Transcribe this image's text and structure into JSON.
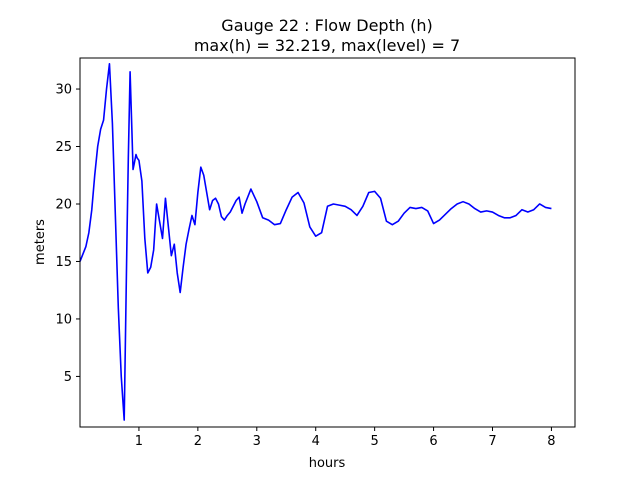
{
  "chart_data": {
    "type": "line",
    "title_line1": "Gauge 22 : Flow Depth (h)",
    "title_line2": "max(h) =  32.219,    max(level) = 7",
    "xlabel": "hours",
    "ylabel": "meters",
    "xlim": [
      0.0,
      8.4
    ],
    "ylim": [
      0.6,
      32.7
    ],
    "xticks": [
      1,
      2,
      3,
      4,
      5,
      6,
      7,
      8
    ],
    "yticks": [
      5,
      10,
      15,
      20,
      25,
      30
    ],
    "grid": false,
    "series": [
      {
        "color": "#0000ff",
        "x": [
          0.0,
          0.1,
          0.15,
          0.2,
          0.25,
          0.3,
          0.35,
          0.4,
          0.45,
          0.5,
          0.55,
          0.6,
          0.65,
          0.7,
          0.75,
          0.8,
          0.82,
          0.85,
          0.88,
          0.9,
          0.92,
          0.95,
          0.97,
          1.0,
          1.05,
          1.1,
          1.15,
          1.2,
          1.25,
          1.3,
          1.35,
          1.4,
          1.45,
          1.5,
          1.55,
          1.6,
          1.65,
          1.7,
          1.75,
          1.8,
          1.85,
          1.9,
          1.95,
          2.0,
          2.05,
          2.1,
          2.15,
          2.2,
          2.25,
          2.3,
          2.35,
          2.4,
          2.45,
          2.5,
          2.55,
          2.6,
          2.65,
          2.7,
          2.75,
          2.8,
          2.9,
          3.0,
          3.1,
          3.2,
          3.3,
          3.4,
          3.5,
          3.6,
          3.7,
          3.8,
          3.9,
          4.0,
          4.1,
          4.2,
          4.3,
          4.4,
          4.5,
          4.6,
          4.7,
          4.8,
          4.9,
          5.0,
          5.1,
          5.2,
          5.3,
          5.4,
          5.5,
          5.6,
          5.7,
          5.8,
          5.9,
          6.0,
          6.1,
          6.2,
          6.3,
          6.4,
          6.5,
          6.6,
          6.7,
          6.8,
          6.9,
          7.0,
          7.1,
          7.2,
          7.3,
          7.4,
          7.5,
          7.6,
          7.7,
          7.8,
          7.9,
          8.0
        ],
        "y": [
          15.0,
          16.3,
          17.5,
          19.5,
          22.5,
          25.0,
          26.5,
          27.3,
          30.0,
          32.2,
          27.0,
          19.0,
          11.0,
          5.0,
          1.2,
          18.0,
          24.0,
          31.5,
          26.5,
          23.0,
          23.5,
          24.3,
          24.0,
          23.8,
          22.0,
          17.0,
          14.0,
          14.5,
          16.0,
          20.0,
          18.5,
          17.0,
          20.5,
          18.0,
          15.5,
          16.5,
          14.0,
          12.3,
          14.5,
          16.5,
          17.8,
          19.0,
          18.2,
          21.0,
          23.2,
          22.5,
          21.0,
          19.5,
          20.3,
          20.5,
          20.0,
          18.9,
          18.6,
          19.0,
          19.3,
          19.8,
          20.3,
          20.6,
          19.2,
          20.0,
          21.3,
          20.2,
          18.8,
          18.6,
          18.2,
          18.3,
          19.5,
          20.6,
          21.0,
          20.1,
          18.0,
          17.2,
          17.5,
          19.8,
          20.0,
          19.9,
          19.8,
          19.5,
          19.0,
          19.8,
          21.0,
          21.1,
          20.5,
          18.5,
          18.2,
          18.5,
          19.2,
          19.7,
          19.6,
          19.7,
          19.4,
          18.3,
          18.6,
          19.1,
          19.6,
          20.0,
          20.2,
          20.0,
          19.6,
          19.3,
          19.4,
          19.3,
          19.0,
          18.8,
          18.8,
          19.0,
          19.5,
          19.3,
          19.5,
          20.0,
          19.7,
          19.6
        ]
      }
    ]
  }
}
